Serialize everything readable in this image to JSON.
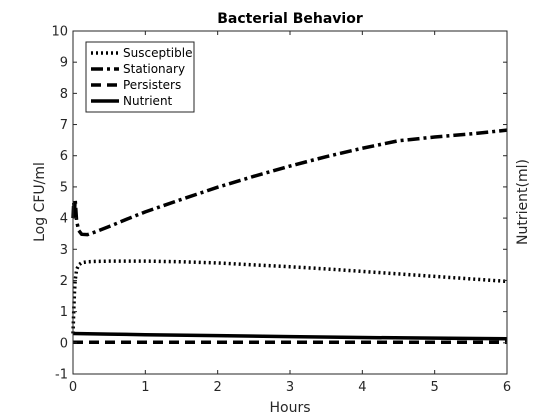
{
  "chart_data": {
    "type": "line",
    "title": "Bacterial Behavior",
    "xlabel": "Hours",
    "ylabel": "Log CFU/ml",
    "ylabel_right": "Nutrient(ml)",
    "xlim": [
      0,
      6
    ],
    "ylim": [
      -1,
      10
    ],
    "xticks": [
      0,
      1,
      2,
      3,
      4,
      5,
      6
    ],
    "yticks": [
      -1,
      0,
      1,
      2,
      3,
      4,
      5,
      6,
      7,
      8,
      9,
      10
    ],
    "grid": false,
    "legend_position": "top-left",
    "series": [
      {
        "name": "Susceptible",
        "style": "dotted",
        "color": "#000000",
        "x": [
          0,
          0.01,
          0.02,
          0.03,
          0.05,
          0.08,
          0.12,
          0.2,
          0.3,
          0.5,
          0.75,
          1.0,
          1.5,
          2.0,
          2.5,
          3.0,
          3.5,
          4.0,
          4.5,
          5.0,
          5.5,
          6.0
        ],
        "y": [
          0.3,
          1.0,
          1.6,
          2.0,
          2.35,
          2.5,
          2.57,
          2.6,
          2.61,
          2.62,
          2.62,
          2.62,
          2.6,
          2.56,
          2.5,
          2.44,
          2.37,
          2.29,
          2.21,
          2.13,
          2.05,
          1.97
        ]
      },
      {
        "name": "Stationary",
        "style": "dashdot",
        "color": "#000000",
        "x": [
          0,
          0.01,
          0.02,
          0.03,
          0.05,
          0.08,
          0.12,
          0.2,
          0.3,
          0.5,
          0.75,
          1.0,
          1.5,
          2.0,
          2.5,
          3.0,
          3.5,
          4.0,
          4.5,
          5.0,
          5.5,
          6.0
        ],
        "y": [
          4.0,
          4.5,
          4.2,
          4.6,
          3.9,
          3.6,
          3.48,
          3.47,
          3.55,
          3.73,
          3.97,
          4.2,
          4.6,
          4.99,
          5.34,
          5.67,
          5.97,
          6.24,
          6.48,
          6.6,
          6.7,
          6.82
        ]
      },
      {
        "name": "Persisters",
        "style": "dashed",
        "color": "#000000",
        "x": [
          0,
          1,
          2,
          3,
          4,
          5,
          6
        ],
        "y": [
          0.02,
          0.02,
          0.02,
          0.02,
          0.02,
          0.02,
          0.02
        ]
      },
      {
        "name": "Nutrient",
        "style": "solid",
        "color": "#000000",
        "x": [
          0,
          0.5,
          1,
          2,
          3,
          4,
          5,
          6
        ],
        "y": [
          0.3,
          0.28,
          0.26,
          0.23,
          0.2,
          0.17,
          0.15,
          0.13
        ]
      }
    ]
  }
}
